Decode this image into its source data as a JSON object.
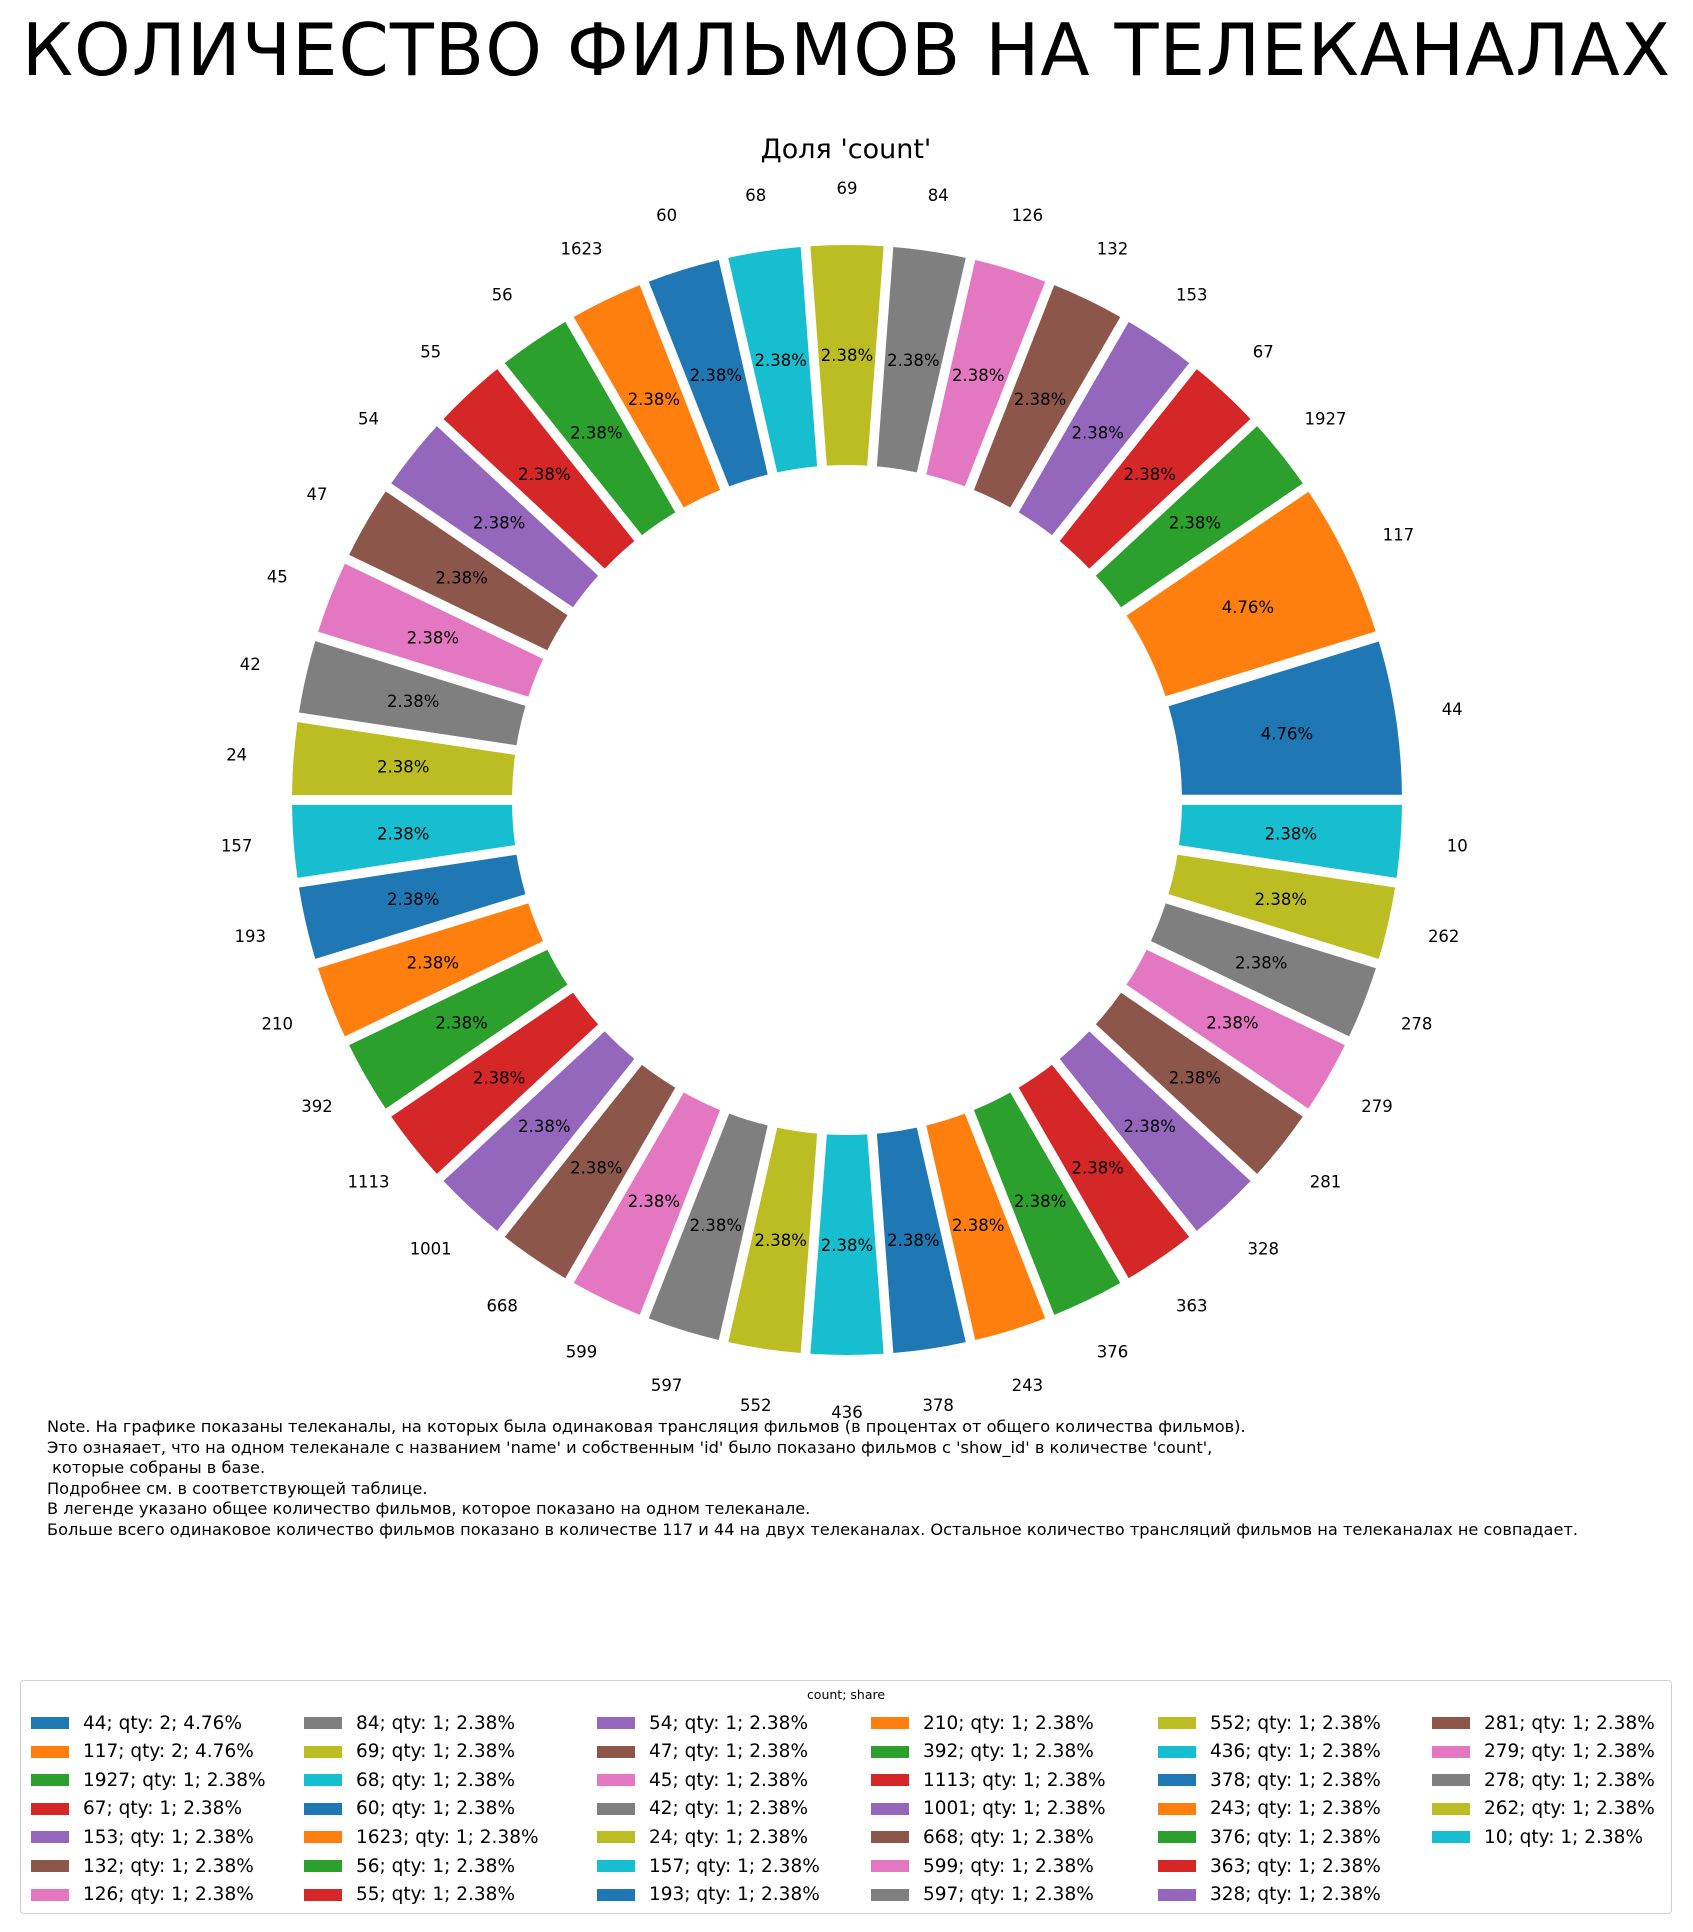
{
  "title": "КОЛИЧЕСТВО ФИЛЬМОВ НА ТЕЛЕКАНАЛАХ",
  "note_lines": [
    "Note. На графике показаны телеканалы, на которых была одинаковая трансляция фильмов (в процентах от общего количества фильмов).",
    "Это ознаяает, что на одном телеканале с названием 'name' и собственным 'id' было показано фильмов с 'show_id' в количестве 'count',",
    " которые собраны в базе.",
    "Подробнее см. в соответствующей таблице.",
    "В легенде указано общее количество фильмов, которое показано на одном телеканале.",
    "Больше всего одинаковое количество фильмов показано в количестве 117 и 44 на двух телеканалах. Остальное количество трансляций фильмов на телеканалах не совпадает."
  ],
  "chart_data": {
    "type": "pie",
    "title": "Доля 'count'",
    "legend_title": "count; share",
    "legend_placement": "bottom",
    "palette": [
      "#1f77b4",
      "#ff7f0e",
      "#2ca02c",
      "#d62728",
      "#9467bd",
      "#8c564b",
      "#e377c2",
      "#7f7f7f",
      "#bcbd22",
      "#17becf"
    ],
    "slices": [
      {
        "label": "44",
        "qty": 2,
        "share": "4.76%",
        "legend": "44; qty: 2; 4.76%"
      },
      {
        "label": "117",
        "qty": 2,
        "share": "4.76%",
        "legend": "117; qty: 2; 4.76%"
      },
      {
        "label": "1927",
        "qty": 1,
        "share": "2.38%",
        "legend": "1927; qty: 1; 2.38%"
      },
      {
        "label": "67",
        "qty": 1,
        "share": "2.38%",
        "legend": "67; qty: 1; 2.38%"
      },
      {
        "label": "153",
        "qty": 1,
        "share": "2.38%",
        "legend": "153; qty: 1; 2.38%"
      },
      {
        "label": "132",
        "qty": 1,
        "share": "2.38%",
        "legend": "132; qty: 1; 2.38%"
      },
      {
        "label": "126",
        "qty": 1,
        "share": "2.38%",
        "legend": "126; qty: 1; 2.38%"
      },
      {
        "label": "84",
        "qty": 1,
        "share": "2.38%",
        "legend": "84; qty: 1; 2.38%"
      },
      {
        "label": "69",
        "qty": 1,
        "share": "2.38%",
        "legend": "69; qty: 1; 2.38%"
      },
      {
        "label": "68",
        "qty": 1,
        "share": "2.38%",
        "legend": "68; qty: 1; 2.38%"
      },
      {
        "label": "60",
        "qty": 1,
        "share": "2.38%",
        "legend": "60; qty: 1; 2.38%"
      },
      {
        "label": "1623",
        "qty": 1,
        "share": "2.38%",
        "legend": "1623; qty: 1; 2.38%"
      },
      {
        "label": "56",
        "qty": 1,
        "share": "2.38%",
        "legend": "56; qty: 1; 2.38%"
      },
      {
        "label": "55",
        "qty": 1,
        "share": "2.38%",
        "legend": "55; qty: 1; 2.38%"
      },
      {
        "label": "54",
        "qty": 1,
        "share": "2.38%",
        "legend": "54; qty: 1; 2.38%"
      },
      {
        "label": "47",
        "qty": 1,
        "share": "2.38%",
        "legend": "47; qty: 1; 2.38%"
      },
      {
        "label": "45",
        "qty": 1,
        "share": "2.38%",
        "legend": "45; qty: 1; 2.38%"
      },
      {
        "label": "42",
        "qty": 1,
        "share": "2.38%",
        "legend": "42; qty: 1; 2.38%"
      },
      {
        "label": "24",
        "qty": 1,
        "share": "2.38%",
        "legend": "24; qty: 1; 2.38%"
      },
      {
        "label": "157",
        "qty": 1,
        "share": "2.38%",
        "legend": "157; qty: 1; 2.38%"
      },
      {
        "label": "193",
        "qty": 1,
        "share": "2.38%",
        "legend": "193; qty: 1; 2.38%"
      },
      {
        "label": "210",
        "qty": 1,
        "share": "2.38%",
        "legend": "210; qty: 1; 2.38%"
      },
      {
        "label": "392",
        "qty": 1,
        "share": "2.38%",
        "legend": "392; qty: 1; 2.38%"
      },
      {
        "label": "1113",
        "qty": 1,
        "share": "2.38%",
        "legend": "1113; qty: 1; 2.38%"
      },
      {
        "label": "1001",
        "qty": 1,
        "share": "2.38%",
        "legend": "1001; qty: 1; 2.38%"
      },
      {
        "label": "668",
        "qty": 1,
        "share": "2.38%",
        "legend": "668; qty: 1; 2.38%"
      },
      {
        "label": "599",
        "qty": 1,
        "share": "2.38%",
        "legend": "599; qty: 1; 2.38%"
      },
      {
        "label": "597",
        "qty": 1,
        "share": "2.38%",
        "legend": "597; qty: 1; 2.38%"
      },
      {
        "label": "552",
        "qty": 1,
        "share": "2.38%",
        "legend": "552; qty: 1; 2.38%"
      },
      {
        "label": "436",
        "qty": 1,
        "share": "2.38%",
        "legend": "436; qty: 1; 2.38%"
      },
      {
        "label": "378",
        "qty": 1,
        "share": "2.38%",
        "legend": "378; qty: 1; 2.38%"
      },
      {
        "label": "243",
        "qty": 1,
        "share": "2.38%",
        "legend": "243; qty: 1; 2.38%"
      },
      {
        "label": "376",
        "qty": 1,
        "share": "2.38%",
        "legend": "376; qty: 1; 2.38%"
      },
      {
        "label": "363",
        "qty": 1,
        "share": "2.38%",
        "legend": "363; qty: 1; 2.38%"
      },
      {
        "label": "328",
        "qty": 1,
        "share": "2.38%",
        "legend": "328; qty: 1; 2.38%"
      },
      {
        "label": "281",
        "qty": 1,
        "share": "2.38%",
        "legend": "281; qty: 1; 2.38%"
      },
      {
        "label": "279",
        "qty": 1,
        "share": "2.38%",
        "legend": "279; qty: 1; 2.38%"
      },
      {
        "label": "278",
        "qty": 1,
        "share": "2.38%",
        "legend": "278; qty: 1; 2.38%"
      },
      {
        "label": "262",
        "qty": 1,
        "share": "2.38%",
        "legend": "262; qty: 1; 2.38%"
      },
      {
        "label": "10",
        "qty": 1,
        "share": "2.38%",
        "legend": "10; qty: 1; 2.38%"
      }
    ]
  }
}
